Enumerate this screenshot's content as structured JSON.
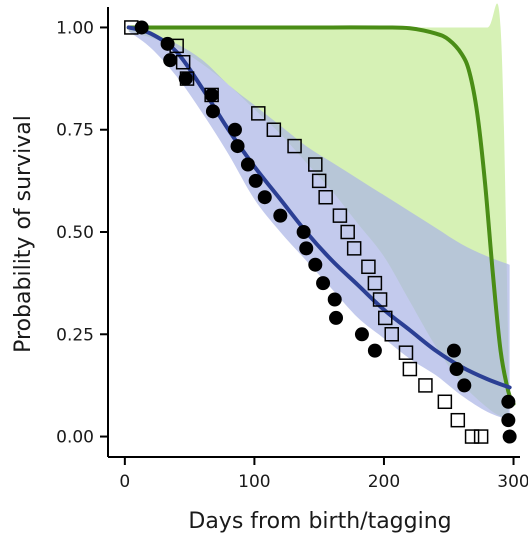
{
  "chart_data": {
    "type": "line",
    "title": "",
    "xlabel": "Days from birth/tagging",
    "ylabel": "Probability of survival",
    "xlim": [
      -13,
      305
    ],
    "ylim": [
      -0.05,
      1.05
    ],
    "x_ticks": [
      0,
      100,
      200,
      300
    ],
    "x_tick_labels": [
      "0",
      "100",
      "200",
      "300"
    ],
    "y_ticks": [
      0,
      0.25,
      0.5,
      0.75,
      1
    ],
    "y_tick_labels": [
      "0.00",
      "0.25",
      "0.50",
      "0.75",
      "1.00"
    ],
    "grid": false,
    "legend": "none",
    "colors": {
      "blue_line": "#2b3f94",
      "blue_band": "#a9b4e6",
      "green_line": "#4a8d16",
      "green_band": "#c6ec98",
      "markers": "#000000"
    },
    "series": [
      {
        "kind": "band",
        "color_key": "green_band",
        "opacity": 0.72,
        "x": [
          3,
          20,
          40,
          60,
          80,
          100,
          120,
          140,
          160,
          180,
          200,
          220,
          240,
          260,
          280,
          290,
          296
        ],
        "upper": [
          1.0,
          1.0,
          1.0,
          1.0,
          1.0,
          1.0,
          1.0,
          1.0,
          1.0,
          1.0,
          1.0,
          1.0,
          1.0,
          1.0,
          1.0,
          1.0,
          0.21
        ],
        "lower": [
          0.99,
          0.975,
          0.95,
          0.91,
          0.86,
          0.8,
          0.74,
          0.67,
          0.6,
          0.52,
          0.44,
          0.33,
          0.22,
          0.13,
          0.07,
          0.05,
          0.05
        ]
      },
      {
        "kind": "band",
        "color_key": "blue_band",
        "opacity": 0.7,
        "x": [
          3,
          20,
          40,
          60,
          80,
          100,
          120,
          140,
          160,
          180,
          200,
          220,
          240,
          260,
          280,
          297
        ],
        "upper": [
          1.0,
          0.985,
          0.96,
          0.92,
          0.86,
          0.81,
          0.76,
          0.71,
          0.67,
          0.63,
          0.59,
          0.55,
          0.51,
          0.47,
          0.44,
          0.42
        ],
        "lower": [
          0.99,
          0.95,
          0.88,
          0.79,
          0.69,
          0.58,
          0.5,
          0.43,
          0.36,
          0.29,
          0.24,
          0.19,
          0.15,
          0.1,
          0.06,
          0.04
        ]
      },
      {
        "kind": "line",
        "color_key": "green_line",
        "x": [
          3,
          40,
          80,
          120,
          160,
          200,
          220,
          240,
          250,
          260,
          266,
          272,
          278,
          284,
          290,
          296,
          300
        ],
        "y": [
          1.0,
          1.0,
          1.0,
          1.0,
          1.0,
          1.0,
          0.998,
          0.985,
          0.97,
          0.935,
          0.89,
          0.79,
          0.62,
          0.4,
          0.21,
          0.11,
          0.08
        ]
      },
      {
        "kind": "line",
        "color_key": "blue_line",
        "x": [
          3,
          20,
          40,
          60,
          80,
          100,
          120,
          140,
          160,
          180,
          200,
          220,
          240,
          260,
          280,
          297
        ],
        "y": [
          1.0,
          0.985,
          0.94,
          0.85,
          0.75,
          0.66,
          0.58,
          0.5,
          0.43,
          0.37,
          0.31,
          0.26,
          0.21,
          0.17,
          0.14,
          0.12
        ]
      },
      {
        "kind": "points",
        "marker": "circle-filled",
        "x": [
          13,
          33,
          35,
          47,
          67,
          68,
          85,
          87,
          95,
          101,
          108,
          120,
          138,
          140,
          147,
          153,
          162,
          163,
          183,
          193,
          254,
          256,
          262,
          296,
          296,
          297
        ],
        "y": [
          1.0,
          0.96,
          0.92,
          0.875,
          0.835,
          0.795,
          0.75,
          0.71,
          0.665,
          0.625,
          0.585,
          0.54,
          0.5,
          0.46,
          0.42,
          0.375,
          0.335,
          0.29,
          0.25,
          0.21,
          0.21,
          0.165,
          0.125,
          0.085,
          0.04,
          0.0
        ]
      },
      {
        "kind": "points",
        "marker": "square-open",
        "x": [
          5,
          40,
          45,
          48,
          67,
          103,
          115,
          131,
          147,
          150,
          155,
          166,
          172,
          177,
          188,
          193,
          197,
          201,
          206,
          217,
          220,
          232,
          247,
          257,
          268,
          275
        ],
        "y": [
          1.0,
          0.955,
          0.915,
          0.875,
          0.835,
          0.79,
          0.75,
          0.71,
          0.665,
          0.625,
          0.585,
          0.54,
          0.5,
          0.46,
          0.415,
          0.375,
          0.335,
          0.29,
          0.25,
          0.205,
          0.165,
          0.125,
          0.085,
          0.04,
          0.0,
          0.0
        ]
      }
    ]
  }
}
